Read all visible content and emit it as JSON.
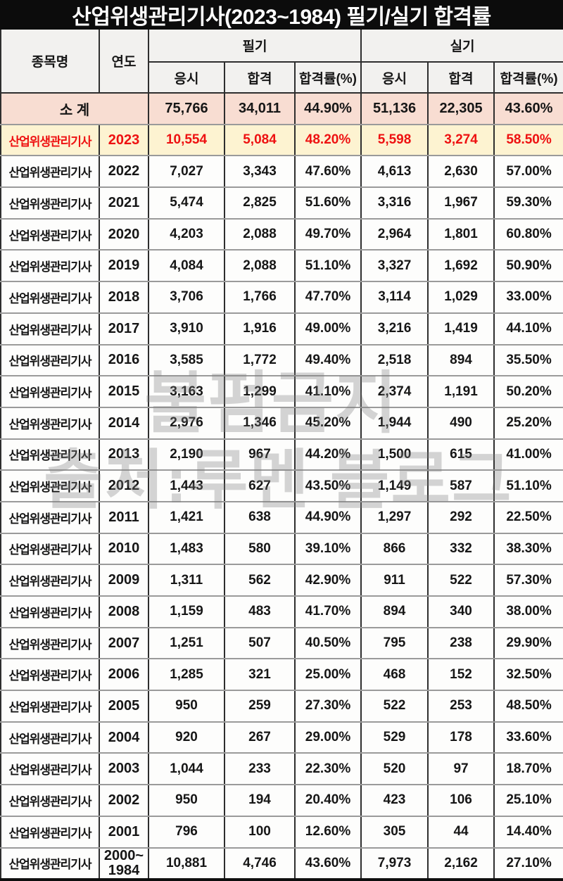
{
  "title": "산업위생관리기사(2023~1984) 필기/실기 합격률",
  "table": {
    "headers": {
      "subject": "종목명",
      "year": "연도",
      "written_group": "필기",
      "practical_group": "실기",
      "applied": "응시",
      "passed": "합격",
      "pass_rate": "합격률(%)"
    },
    "subtotal": {
      "label": "소 계",
      "values": [
        "75,766",
        "34,011",
        "44.90%",
        "51,136",
        "22,305",
        "43.60%"
      ]
    },
    "rows": [
      {
        "subject": "산업위생관리기사",
        "year": "2023",
        "values": [
          "10,554",
          "5,084",
          "48.20%",
          "5,598",
          "3,274",
          "58.50%"
        ],
        "highlight": true
      },
      {
        "subject": "산업위생관리기사",
        "year": "2022",
        "values": [
          "7,027",
          "3,343",
          "47.60%",
          "4,613",
          "2,630",
          "57.00%"
        ],
        "highlight": false
      },
      {
        "subject": "산업위생관리기사",
        "year": "2021",
        "values": [
          "5,474",
          "2,825",
          "51.60%",
          "3,316",
          "1,967",
          "59.30%"
        ],
        "highlight": false
      },
      {
        "subject": "산업위생관리기사",
        "year": "2020",
        "values": [
          "4,203",
          "2,088",
          "49.70%",
          "2,964",
          "1,801",
          "60.80%"
        ],
        "highlight": false
      },
      {
        "subject": "산업위생관리기사",
        "year": "2019",
        "values": [
          "4,084",
          "2,088",
          "51.10%",
          "3,327",
          "1,692",
          "50.90%"
        ],
        "highlight": false
      },
      {
        "subject": "산업위생관리기사",
        "year": "2018",
        "values": [
          "3,706",
          "1,766",
          "47.70%",
          "3,114",
          "1,029",
          "33.00%"
        ],
        "highlight": false
      },
      {
        "subject": "산업위생관리기사",
        "year": "2017",
        "values": [
          "3,910",
          "1,916",
          "49.00%",
          "3,216",
          "1,419",
          "44.10%"
        ],
        "highlight": false
      },
      {
        "subject": "산업위생관리기사",
        "year": "2016",
        "values": [
          "3,585",
          "1,772",
          "49.40%",
          "2,518",
          "894",
          "35.50%"
        ],
        "highlight": false
      },
      {
        "subject": "산업위생관리기사",
        "year": "2015",
        "values": [
          "3,163",
          "1,299",
          "41.10%",
          "2,374",
          "1,191",
          "50.20%"
        ],
        "highlight": false
      },
      {
        "subject": "산업위생관리기사",
        "year": "2014",
        "values": [
          "2,976",
          "1,346",
          "45.20%",
          "1,944",
          "490",
          "25.20%"
        ],
        "highlight": false
      },
      {
        "subject": "산업위생관리기사",
        "year": "2013",
        "values": [
          "2,190",
          "967",
          "44.20%",
          "1,500",
          "615",
          "41.00%"
        ],
        "highlight": false
      },
      {
        "subject": "산업위생관리기사",
        "year": "2012",
        "values": [
          "1,443",
          "627",
          "43.50%",
          "1,149",
          "587",
          "51.10%"
        ],
        "highlight": false
      },
      {
        "subject": "산업위생관리기사",
        "year": "2011",
        "values": [
          "1,421",
          "638",
          "44.90%",
          "1,297",
          "292",
          "22.50%"
        ],
        "highlight": false
      },
      {
        "subject": "산업위생관리기사",
        "year": "2010",
        "values": [
          "1,483",
          "580",
          "39.10%",
          "866",
          "332",
          "38.30%"
        ],
        "highlight": false
      },
      {
        "subject": "산업위생관리기사",
        "year": "2009",
        "values": [
          "1,311",
          "562",
          "42.90%",
          "911",
          "522",
          "57.30%"
        ],
        "highlight": false
      },
      {
        "subject": "산업위생관리기사",
        "year": "2008",
        "values": [
          "1,159",
          "483",
          "41.70%",
          "894",
          "340",
          "38.00%"
        ],
        "highlight": false
      },
      {
        "subject": "산업위생관리기사",
        "year": "2007",
        "values": [
          "1,251",
          "507",
          "40.50%",
          "795",
          "238",
          "29.90%"
        ],
        "highlight": false
      },
      {
        "subject": "산업위생관리기사",
        "year": "2006",
        "values": [
          "1,285",
          "321",
          "25.00%",
          "468",
          "152",
          "32.50%"
        ],
        "highlight": false
      },
      {
        "subject": "산업위생관리기사",
        "year": "2005",
        "values": [
          "950",
          "259",
          "27.30%",
          "522",
          "253",
          "48.50%"
        ],
        "highlight": false
      },
      {
        "subject": "산업위생관리기사",
        "year": "2004",
        "values": [
          "920",
          "267",
          "29.00%",
          "529",
          "178",
          "33.60%"
        ],
        "highlight": false
      },
      {
        "subject": "산업위생관리기사",
        "year": "2003",
        "values": [
          "1,044",
          "233",
          "22.30%",
          "520",
          "97",
          "18.70%"
        ],
        "highlight": false
      },
      {
        "subject": "산업위생관리기사",
        "year": "2002",
        "values": [
          "950",
          "194",
          "20.40%",
          "423",
          "106",
          "25.10%"
        ],
        "highlight": false
      },
      {
        "subject": "산업위생관리기사",
        "year": "2001",
        "values": [
          "796",
          "100",
          "12.60%",
          "305",
          "44",
          "14.40%"
        ],
        "highlight": false
      },
      {
        "subject": "산업위생관리기사",
        "year": "2000~\n1984",
        "values": [
          "10,881",
          "4,746",
          "43.60%",
          "7,973",
          "2,162",
          "27.10%"
        ],
        "highlight": false
      }
    ]
  },
  "watermark": {
    "line1": "불펌금지",
    "line2": "출처:루멘 블로그"
  },
  "colors": {
    "title_bg": "#0c0c0c",
    "title_text": "#ffffff",
    "header_bg": "#f2f1ef",
    "subtotal_bg": "#f8ddd2",
    "highlight_bg": "#fdf3d1",
    "highlight_text": "#ee1111",
    "border_dark": "#2e2e2e",
    "border_row": "#9a9a9a"
  }
}
